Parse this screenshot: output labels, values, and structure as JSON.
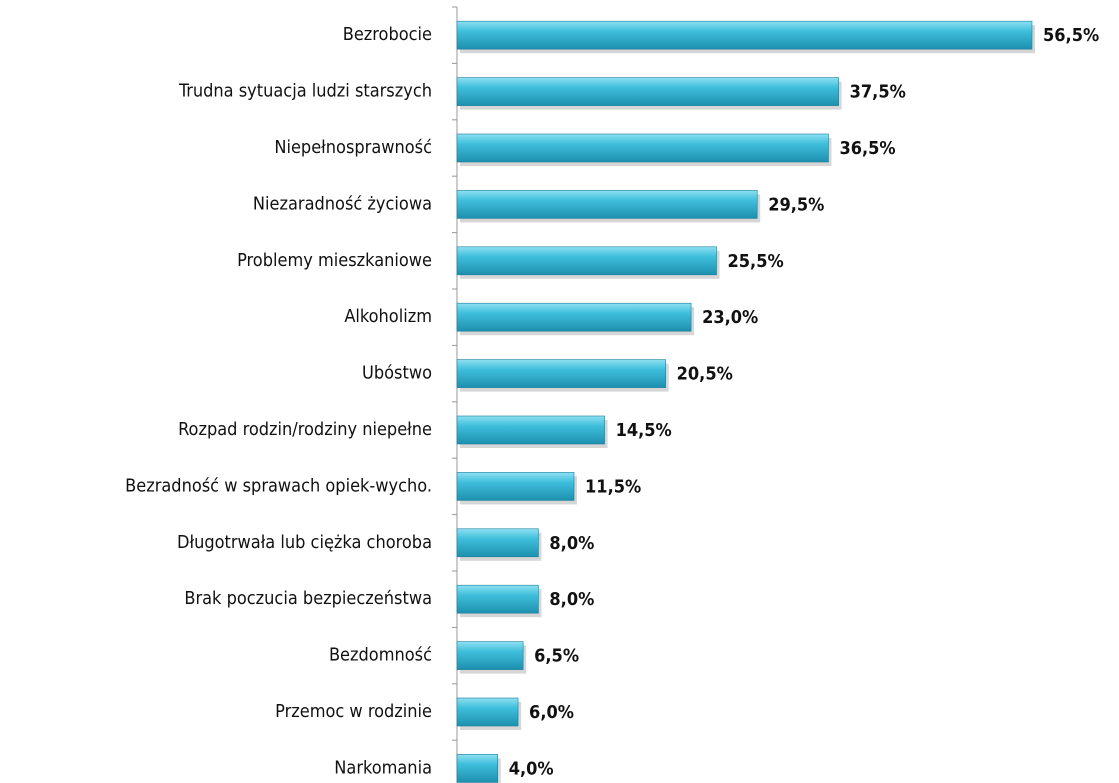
{
  "chart_data": {
    "type": "hbar",
    "categories": [
      "Bezrobocie",
      "Trudna sytuacja ludzi starszych",
      "Niepełnosprawność",
      "Niezaradność życiowa",
      "Problemy mieszkaniowe",
      "Alkoholizm",
      "Ubóstwo",
      "Rozpad rodzin/rodziny niepełne",
      "Bezradność w sprawach opiek-wycho.",
      "Długotrwała lub ciężka choroba",
      "Brak poczucia bezpieczeństwa",
      "Bezdomność",
      "Przemoc w rodzinie",
      "Narkomania"
    ],
    "values": [
      56.5,
      37.5,
      36.5,
      29.5,
      25.5,
      23.0,
      20.5,
      14.5,
      11.5,
      8.0,
      8.0,
      6.5,
      6.0,
      4.0
    ],
    "value_labels": [
      "56,5%",
      "37,5%",
      "36,5%",
      "29,5%",
      "25,5%",
      "23,0%",
      "20,5%",
      "14,5%",
      "11,5%",
      "8,0%",
      "8,0%",
      "6,5%",
      "6,0%",
      "4,0%"
    ],
    "color": "#3fbfdc"
  }
}
